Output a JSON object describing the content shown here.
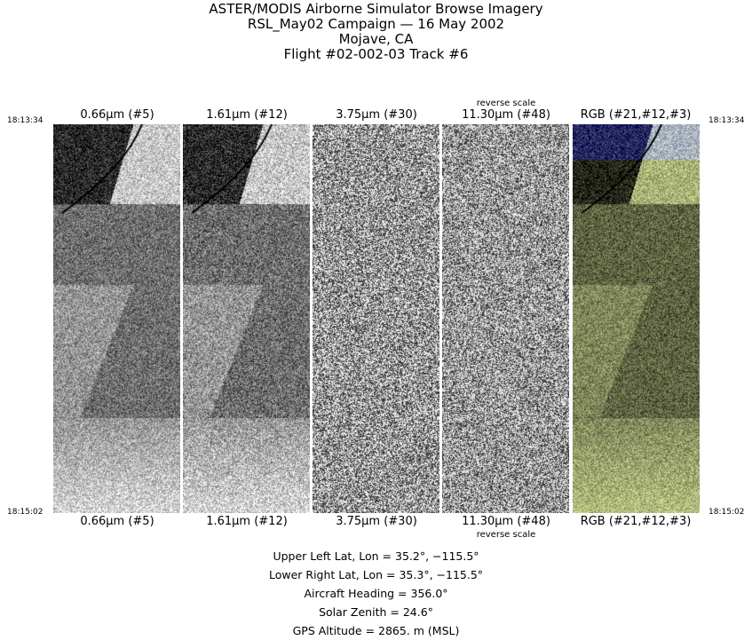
{
  "title": {
    "line1": "ASTER/MODIS Airborne Simulator Browse Imagery",
    "line2": "RSL_May02 Campaign — 16 May 2002",
    "line3": "Mojave, CA",
    "line4": "Flight #02-002-03 Track #6"
  },
  "times": {
    "start": "18:13:34",
    "end": "18:15:02"
  },
  "panels": [
    {
      "label": "0.66µm (#5)",
      "note": ""
    },
    {
      "label": "1.61µm (#12)",
      "note": ""
    },
    {
      "label": "3.75µm (#30)",
      "note": ""
    },
    {
      "label": "11.30µm (#48)",
      "note": "reverse scale"
    },
    {
      "label": "RGB (#21,#12,#3)",
      "note": ""
    }
  ],
  "info": {
    "upper_left": "Upper Left Lat, Lon =   35.2°, −115.5°",
    "lower_right": "Lower Right Lat, Lon =   35.3°, −115.5°",
    "heading": "Aircraft Heading =  356.0°",
    "solar_zenith": "Solar Zenith =   24.6°",
    "gps_altitude": "GPS Altitude =   2865. m (MSL)"
  }
}
